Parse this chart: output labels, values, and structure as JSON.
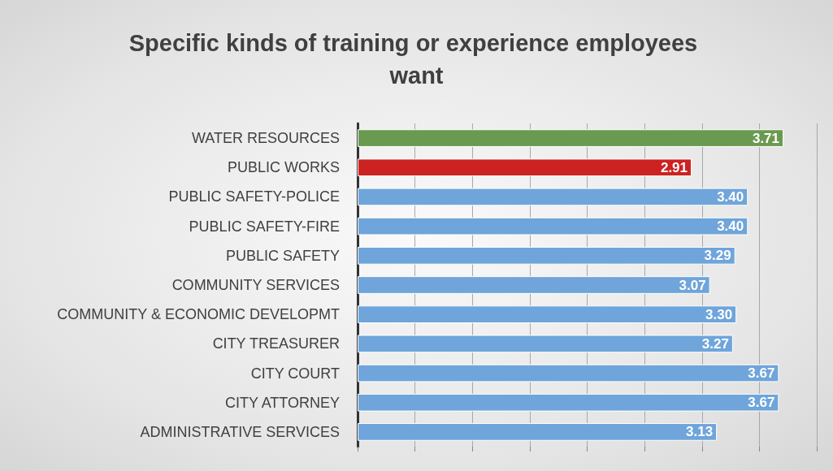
{
  "chart_data": {
    "type": "bar",
    "orientation": "horizontal",
    "title": "Specific kinds of training or experience employees want",
    "categories": [
      "WATER RESOURCES",
      "PUBLIC WORKS",
      "PUBLIC SAFETY-POLICE",
      "PUBLIC SAFETY-FIRE",
      "PUBLIC SAFETY",
      "COMMUNITY SERVICES",
      "COMMUNITY & ECONOMIC DEVELOPMT",
      "CITY TREASURER",
      "CITY COURT",
      "CITY ATTORNEY",
      "ADMINISTRATIVE SERVICES"
    ],
    "values": [
      3.71,
      2.91,
      3.4,
      3.4,
      3.29,
      3.07,
      3.3,
      3.27,
      3.67,
      3.67,
      3.13
    ],
    "value_labels": [
      "3.71",
      "2.91",
      "3.40",
      "3.40",
      "3.29",
      "3.07",
      "3.30",
      "3.27",
      "3.67",
      "3.67",
      "3.13"
    ],
    "colors": [
      "#6a9a4f",
      "#cc2222",
      "#6fa5da",
      "#6fa5da",
      "#6fa5da",
      "#6fa5da",
      "#6fa5da",
      "#6fa5da",
      "#6fa5da",
      "#6fa5da",
      "#6fa5da"
    ],
    "xlim": [
      0,
      4
    ],
    "xticks": [
      {
        "value": 0,
        "label": null
      },
      {
        "value": 0.5,
        "label": null
      },
      {
        "value": 1,
        "label": null
      },
      {
        "value": 1.5,
        "label": null
      },
      {
        "value": 2,
        "label": null
      },
      {
        "value": 2.5,
        "label": null
      },
      {
        "value": 3,
        "label": null
      },
      {
        "value": 3.5,
        "label": null
      },
      {
        "value": 4,
        "label": null
      }
    ],
    "grid": "x"
  }
}
